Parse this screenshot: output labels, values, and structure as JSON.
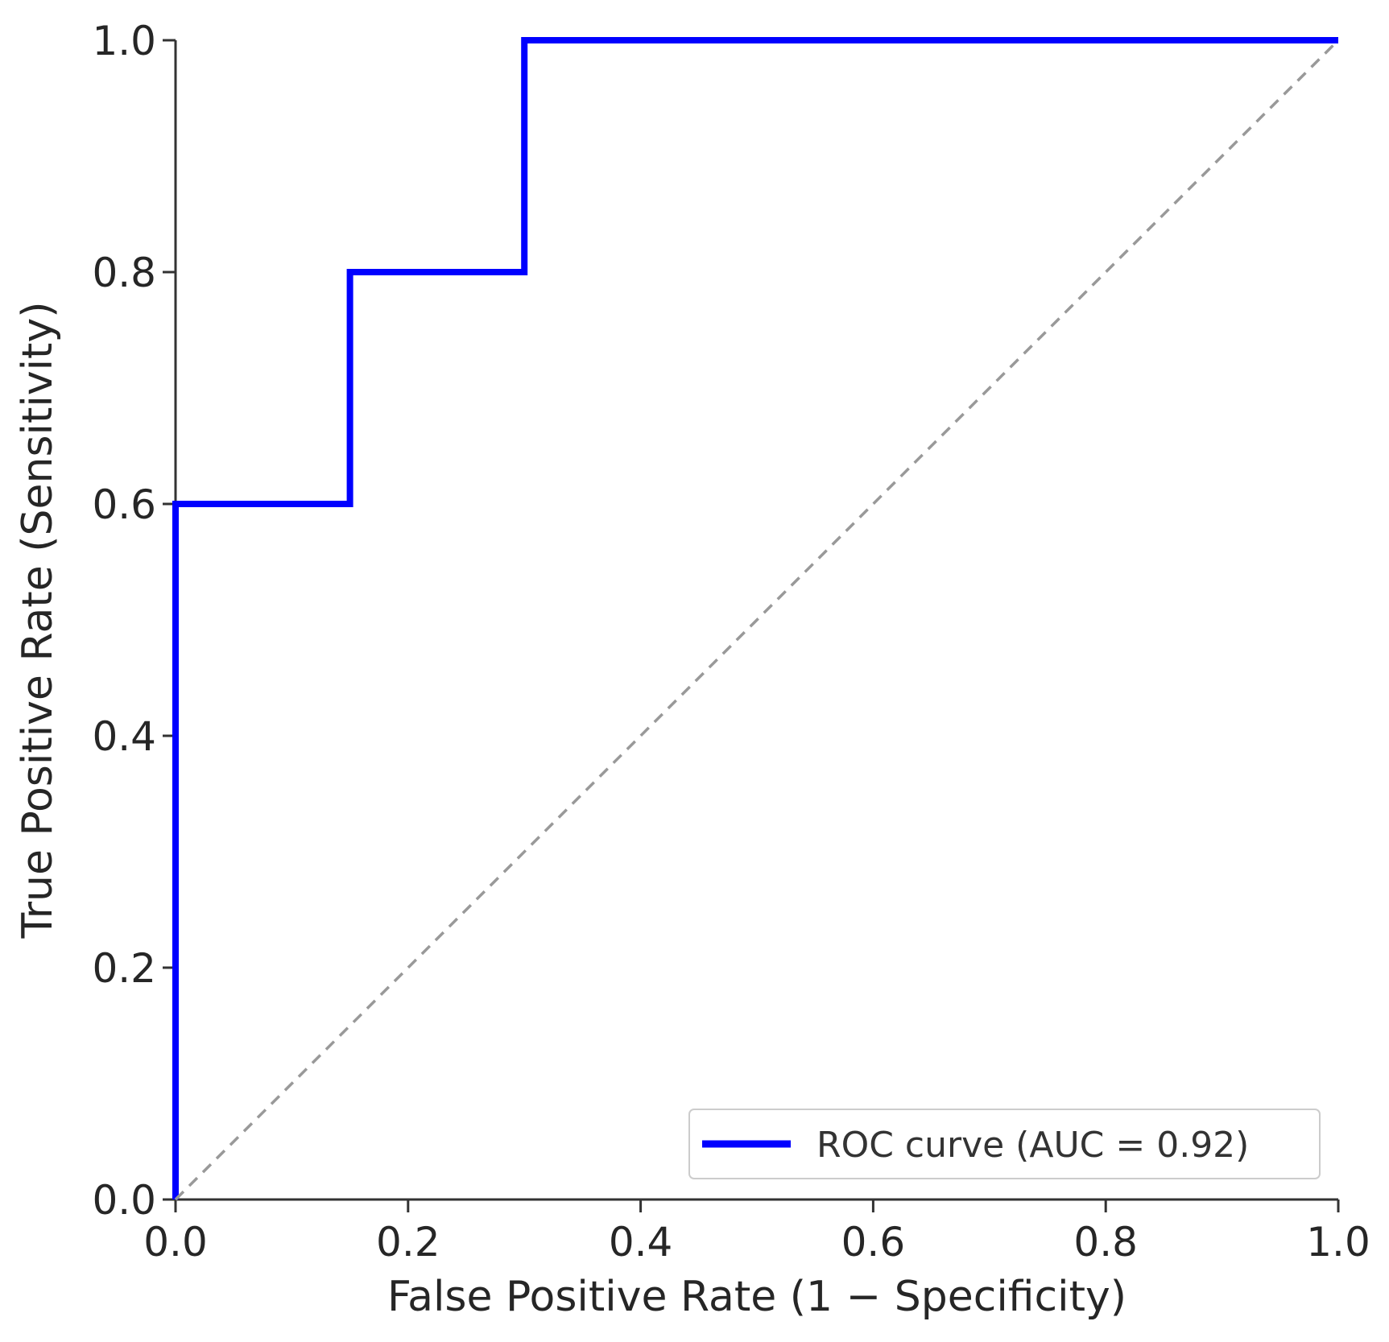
{
  "chart_data": {
    "type": "line",
    "title": "",
    "xlabel": "False Positive Rate (1 − Specificity)",
    "ylabel": "True Positive Rate (Sensitivity)",
    "xlim": [
      0.0,
      1.0
    ],
    "ylim": [
      0.0,
      1.0
    ],
    "xticks": [
      "0.0",
      "0.2",
      "0.4",
      "0.6",
      "0.8",
      "1.0"
    ],
    "yticks": [
      "0.0",
      "0.2",
      "0.4",
      "0.6",
      "0.8",
      "1.0"
    ],
    "grid": false,
    "legend_position": "bottom-right",
    "series": [
      {
        "name": "ROC curve (AUC = 0.92)",
        "color": "#0000ff",
        "style": "solid-step",
        "x": [
          0.0,
          0.0,
          0.15,
          0.15,
          0.3,
          0.3,
          1.0
        ],
        "y": [
          0.0,
          0.6,
          0.6,
          0.8,
          0.8,
          1.0,
          1.0
        ]
      },
      {
        "name": "",
        "color": "#999999",
        "style": "dashed",
        "x": [
          0.0,
          1.0
        ],
        "y": [
          0.0,
          1.0
        ]
      }
    ]
  }
}
